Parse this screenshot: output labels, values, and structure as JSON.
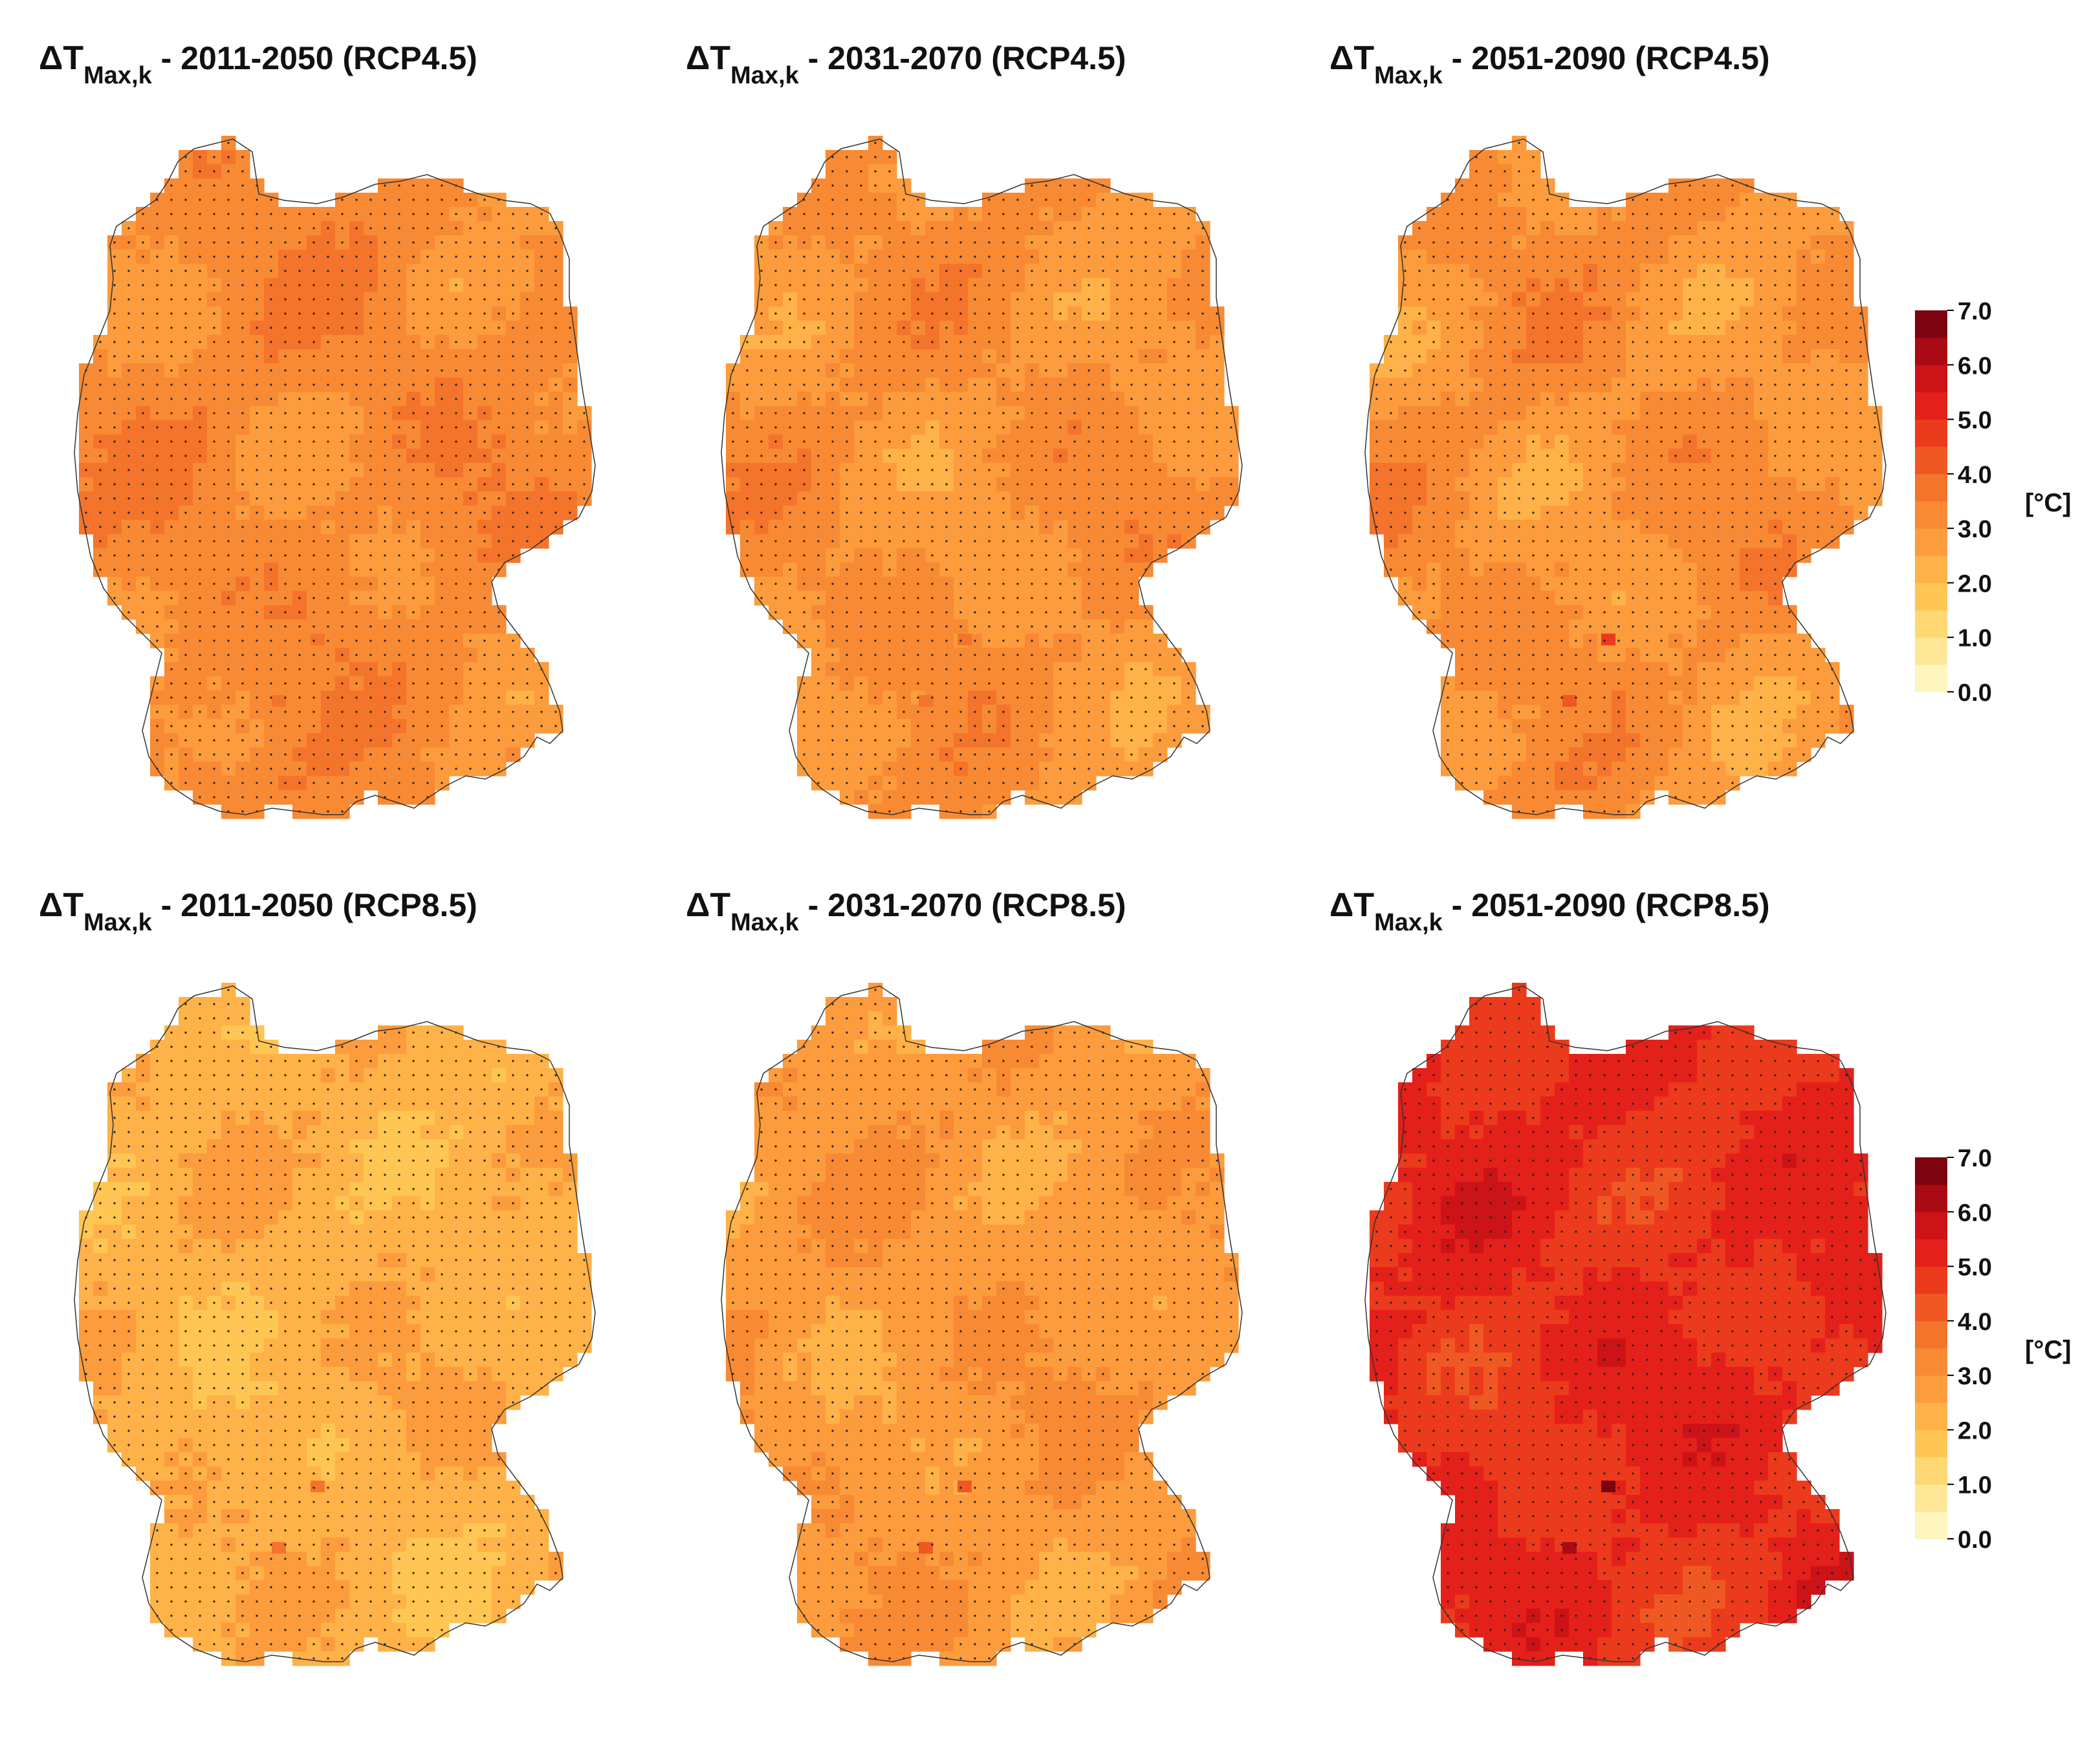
{
  "figure": {
    "panels": [
      {
        "title_prefix": "ΔT",
        "title_sub": "Max,k",
        "title_suffix": " - 2011-2050 (RCP4.5)",
        "scenario": "RCP4.5",
        "period": "2011-2050",
        "mean_level": 3.2,
        "variation": 0.35,
        "hot_spots": [
          3.9,
          3.7
        ],
        "hatching": "stippled"
      },
      {
        "title_prefix": "ΔT",
        "title_sub": "Max,k",
        "title_suffix": " - 2031-2070 (RCP4.5)",
        "scenario": "RCP4.5",
        "period": "2031-2070",
        "mean_level": 3.0,
        "variation": 0.35,
        "hot_spots": [
          3.9,
          3.6
        ],
        "hatching": "stippled"
      },
      {
        "title_prefix": "ΔT",
        "title_sub": "Max,k",
        "title_suffix": " - 2051-2090 (RCP4.5)",
        "scenario": "RCP4.5",
        "period": "2051-2090",
        "mean_level": 3.0,
        "variation": 0.4,
        "hot_spots": [
          4.6,
          4.3
        ],
        "hatching": "stippled"
      },
      {
        "title_prefix": "ΔT",
        "title_sub": "Max,k",
        "title_suffix": " - 2011-2050 (RCP8.5)",
        "scenario": "RCP8.5",
        "period": "2011-2050",
        "mean_level": 2.3,
        "variation": 0.3,
        "hot_spots": [
          3.9,
          3.5
        ],
        "hatching": "stippled"
      },
      {
        "title_prefix": "ΔT",
        "title_sub": "Max,k",
        "title_suffix": " - 2031-2070 (RCP8.5)",
        "scenario": "RCP8.5",
        "period": "2031-2070",
        "mean_level": 2.8,
        "variation": 0.3,
        "hot_spots": [
          4.4,
          4.0
        ],
        "hatching": "stippled"
      },
      {
        "title_prefix": "ΔT",
        "title_sub": "Max,k",
        "title_suffix": " - 2051-2090 (RCP8.5)",
        "scenario": "RCP8.5",
        "period": "2051-2090",
        "mean_level": 5.0,
        "variation": 0.35,
        "hot_spots": [
          6.6,
          6.2
        ],
        "hatching": "stippled"
      }
    ],
    "colorbar": {
      "unit": "[°C]",
      "ticks": [
        "7.0",
        "6.0",
        "5.0",
        "4.0",
        "3.0",
        "2.0",
        "1.0",
        "0.0"
      ],
      "min": 0.0,
      "max": 7.0,
      "steps": 14,
      "colors": [
        "#fff5bf",
        "#ffe79a",
        "#ffd873",
        "#ffc653",
        "#ffb247",
        "#fc9c3c",
        "#f88a34",
        "#f4742b",
        "#f05823",
        "#ec3a1c",
        "#e3201a",
        "#cc1317",
        "#aa0a14",
        "#7d0310"
      ]
    }
  }
}
